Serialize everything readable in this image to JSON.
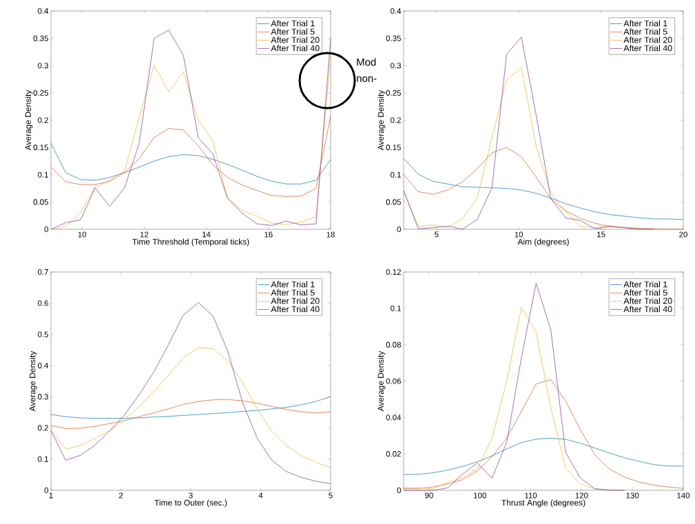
{
  "chart_data": [
    {
      "type": "line",
      "xlabel": "Time Threshold (Temporal ticks)",
      "ylabel": "Average Density",
      "legend": "top right",
      "annotations": [
        "Mod",
        "non-"
      ],
      "x": [
        9,
        9.47,
        9.95,
        10.42,
        10.89,
        11.37,
        11.84,
        12.32,
        12.79,
        13.26,
        13.74,
        14.21,
        14.68,
        15.16,
        15.63,
        16.11,
        16.58,
        17.05,
        17.53,
        18
      ],
      "xlim": [
        9,
        18
      ],
      "xticks": [
        10,
        12,
        14,
        16,
        18
      ],
      "ylim": [
        0,
        0.4
      ],
      "yticks": [
        0,
        0.05,
        0.1,
        0.15,
        0.2,
        0.25,
        0.3,
        0.35,
        0.4
      ],
      "series": [
        {
          "name": "After Trial 1",
          "color": "#0072bd",
          "values": [
            0.158,
            0.104,
            0.091,
            0.09,
            0.095,
            0.104,
            0.114,
            0.125,
            0.133,
            0.137,
            0.135,
            0.128,
            0.119,
            0.108,
            0.097,
            0.088,
            0.083,
            0.083,
            0.09,
            0.128
          ]
        },
        {
          "name": "After Trial 5",
          "color": "#d95319",
          "values": [
            0.114,
            0.087,
            0.082,
            0.082,
            0.088,
            0.104,
            0.13,
            0.168,
            0.185,
            0.182,
            0.153,
            0.118,
            0.095,
            0.081,
            0.071,
            0.062,
            0.06,
            0.061,
            0.075,
            0.207
          ]
        },
        {
          "name": "After Trial 20",
          "color": "#edb120",
          "values": [
            0,
            0.005,
            0.031,
            0.077,
            0.09,
            0.107,
            0.205,
            0.301,
            0.252,
            0.289,
            0.2,
            0.162,
            0.058,
            0.034,
            0.024,
            0.011,
            0.009,
            0.013,
            0.023,
            0.316
          ]
        },
        {
          "name": "After Trial 40",
          "color": "#7e2f8e",
          "values": [
            0,
            0.012,
            0.017,
            0.076,
            0.042,
            0.076,
            0.158,
            0.35,
            0.365,
            0.319,
            0.168,
            0.138,
            0.057,
            0.029,
            0.01,
            0.007,
            0.015,
            0.008,
            0.01,
            0.349
          ]
        }
      ]
    },
    {
      "type": "line",
      "xlabel": "Aim (degrees)",
      "ylabel": "Average Density",
      "legend": "top right",
      "x": [
        3,
        3.89,
        4.79,
        5.68,
        6.58,
        7.47,
        8.37,
        9.26,
        10.16,
        11.05,
        11.95,
        12.84,
        13.74,
        14.63,
        15.53,
        16.42,
        17.32,
        18.21,
        19.11,
        20
      ],
      "xlim": [
        3,
        20
      ],
      "xticks": [
        5,
        10,
        15,
        20
      ],
      "ylim": [
        0,
        0.4
      ],
      "yticks": [
        0,
        0.05,
        0.1,
        0.15,
        0.2,
        0.25,
        0.3,
        0.35,
        0.4
      ],
      "series": [
        {
          "name": "After Trial 1",
          "color": "#0072bd",
          "values": [
            0.13,
            0.101,
            0.088,
            0.083,
            0.078,
            0.077,
            0.076,
            0.075,
            0.072,
            0.066,
            0.057,
            0.047,
            0.039,
            0.032,
            0.027,
            0.024,
            0.021,
            0.019,
            0.019,
            0.018
          ]
        },
        {
          "name": "After Trial 5",
          "color": "#d95319",
          "values": [
            0.1,
            0.069,
            0.064,
            0.072,
            0.087,
            0.111,
            0.14,
            0.15,
            0.133,
            0.096,
            0.056,
            0.034,
            0.02,
            0.011,
            0.005,
            0.003,
            0.002,
            0.001,
            0,
            0
          ]
        },
        {
          "name": "After Trial 20",
          "color": "#edb120",
          "values": [
            0.071,
            0.005,
            0.008,
            0.003,
            0.02,
            0.057,
            0.168,
            0.274,
            0.296,
            0.153,
            0.067,
            0.033,
            0.005,
            0.003,
            0.007,
            0.003,
            0.001,
            null,
            null,
            null
          ]
        },
        {
          "name": "After Trial 40",
          "color": "#7e2f8e",
          "values": [
            0.071,
            0.001,
            0.003,
            0.006,
            0,
            0.018,
            0.076,
            0.321,
            0.352,
            0.21,
            0.056,
            0.021,
            0.016,
            0.001,
            0.005,
            0.003,
            0,
            0,
            null,
            null
          ]
        }
      ]
    },
    {
      "type": "line",
      "xlabel": "Time to Outer (sec.)",
      "ylabel": "Average Density",
      "legend": "top right",
      "x": [
        1,
        1.21,
        1.42,
        1.63,
        1.84,
        2.05,
        2.26,
        2.47,
        2.68,
        2.89,
        3.11,
        3.32,
        3.53,
        3.74,
        3.95,
        4.16,
        4.37,
        4.58,
        4.79,
        5
      ],
      "xlim": [
        1,
        5
      ],
      "xticks": [
        1,
        2,
        3,
        4,
        5
      ],
      "ylim": [
        0,
        0.7
      ],
      "yticks": [
        0,
        0.1,
        0.2,
        0.3,
        0.4,
        0.5,
        0.6,
        0.7
      ],
      "series": [
        {
          "name": "After Trial 1",
          "color": "#0072bd",
          "values": [
            0.243,
            0.236,
            0.232,
            0.231,
            0.231,
            0.231,
            0.232,
            0.235,
            0.237,
            0.24,
            0.243,
            0.246,
            0.249,
            0.253,
            0.256,
            0.261,
            0.266,
            0.274,
            0.285,
            0.3
          ]
        },
        {
          "name": "After Trial 5",
          "color": "#d95319",
          "values": [
            0.208,
            0.198,
            0.199,
            0.205,
            0.214,
            0.223,
            0.236,
            0.248,
            0.261,
            0.275,
            0.285,
            0.29,
            0.291,
            0.287,
            0.279,
            0.269,
            0.259,
            0.252,
            0.248,
            0.251
          ]
        },
        {
          "name": "After Trial 20",
          "color": "#edb120",
          "values": [
            0.192,
            0.132,
            0.144,
            0.166,
            0.192,
            0.226,
            0.269,
            0.317,
            0.368,
            0.425,
            0.457,
            0.454,
            0.414,
            0.346,
            0.261,
            0.19,
            0.142,
            0.111,
            0.089,
            0.073
          ]
        },
        {
          "name": "After Trial 40",
          "color": "#7e2f8e",
          "values": [
            0.192,
            0.096,
            0.112,
            0.145,
            0.19,
            0.241,
            0.306,
            0.379,
            0.467,
            0.561,
            0.602,
            0.558,
            0.445,
            0.282,
            0.167,
            0.096,
            0.06,
            0.041,
            0.029,
            0.021
          ]
        }
      ]
    },
    {
      "type": "line",
      "xlabel": "Thrust Angle (degrees)",
      "ylabel": "Average Density",
      "legend": "top right",
      "x": [
        85,
        87.89,
        90.79,
        93.68,
        96.58,
        99.47,
        102.37,
        105.26,
        108.16,
        111.05,
        113.95,
        116.84,
        119.74,
        122.63,
        125.53,
        128.42,
        131.32,
        134.21,
        137.11,
        140
      ],
      "xlim": [
        85,
        140
      ],
      "xticks": [
        90,
        100,
        110,
        120,
        130,
        140
      ],
      "ylim": [
        0,
        0.12
      ],
      "yticks": [
        0,
        0.02,
        0.04,
        0.06,
        0.08,
        0.1,
        0.12
      ],
      "series": [
        {
          "name": "After Trial 1",
          "color": "#0072bd",
          "values": [
            0.0086,
            0.0088,
            0.0096,
            0.0111,
            0.0131,
            0.0156,
            0.0189,
            0.0227,
            0.0262,
            0.0281,
            0.0286,
            0.028,
            0.0259,
            0.0232,
            0.0204,
            0.0179,
            0.0159,
            0.0141,
            0.0133,
            0.0133
          ]
        },
        {
          "name": "After Trial 5",
          "color": "#d95319",
          "values": [
            0.001,
            0.001,
            0.0018,
            0.0035,
            0.0058,
            0.0106,
            0.0184,
            0.0287,
            0.0433,
            0.0584,
            0.0609,
            0.0491,
            0.0335,
            0.0193,
            0.0115,
            0.0073,
            0.0045,
            0.0028,
            0.0018,
            0.001
          ]
        },
        {
          "name": "After Trial 20",
          "color": "#edb120",
          "values": [
            0.0013,
            0.0013,
            0.0008,
            0.0045,
            0.0068,
            0.0118,
            0.0285,
            0.0599,
            0.1005,
            0.087,
            0.0451,
            0.0123,
            0.0033,
            0.0008,
            0.0003,
            0,
            null,
            null,
            null,
            null
          ]
        },
        {
          "name": "After Trial 40",
          "color": "#7e2f8e",
          "values": [
            0,
            0,
            0,
            0.0013,
            0.0089,
            0.0149,
            0.0067,
            0.0262,
            0.0728,
            0.1138,
            0.0883,
            0.0209,
            0.0068,
            0.0008,
            0,
            0,
            null,
            null,
            null,
            null
          ]
        }
      ]
    }
  ]
}
